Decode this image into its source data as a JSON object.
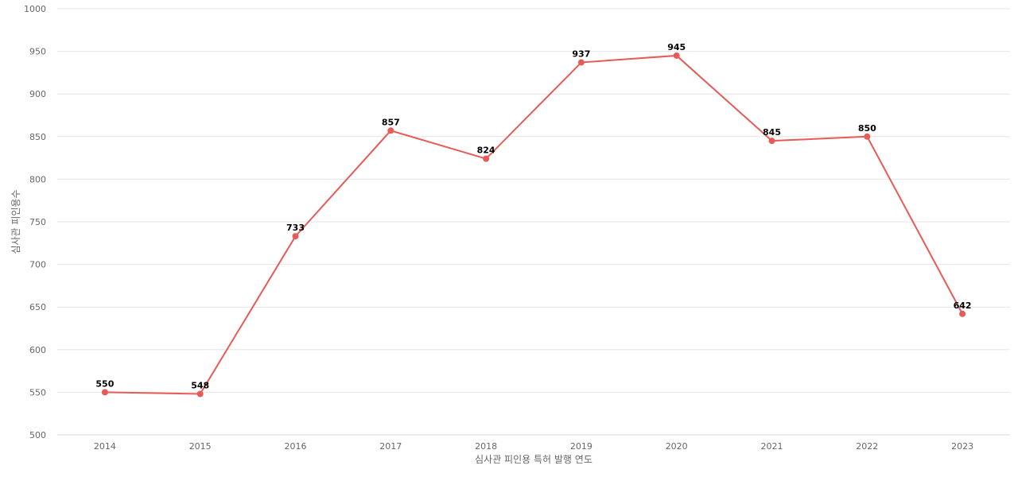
{
  "chart_data": {
    "type": "line",
    "xlabel": "심사관 피인용 특허 발행 연도",
    "ylabel": "심사관 피인용수",
    "categories": [
      "2014",
      "2015",
      "2016",
      "2017",
      "2018",
      "2019",
      "2020",
      "2021",
      "2022",
      "2023"
    ],
    "values": [
      550,
      548,
      733,
      857,
      824,
      937,
      945,
      845,
      850,
      642
    ],
    "ylim": [
      500,
      1000
    ],
    "yticks": [
      500,
      550,
      600,
      650,
      700,
      750,
      800,
      850,
      900,
      950,
      1000
    ],
    "grid": true,
    "legend": "none",
    "data_labels": true,
    "color": "#e85a55"
  }
}
